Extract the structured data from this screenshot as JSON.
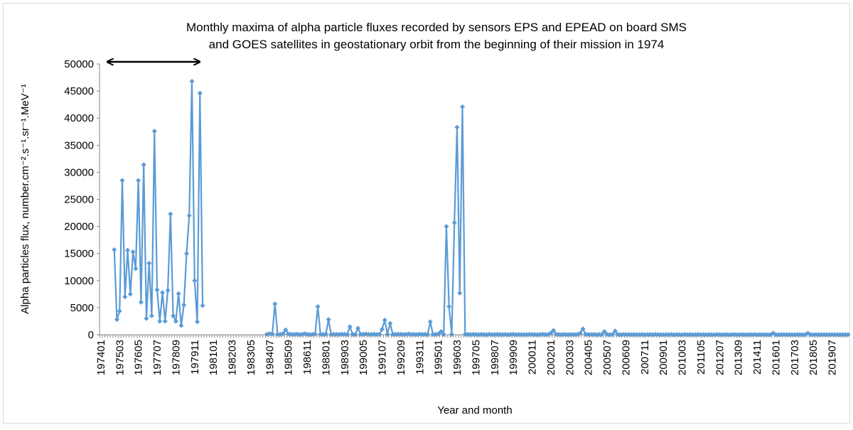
{
  "chart_data": {
    "type": "line",
    "title": [
      "Monthly maxima of alpha particle fluxes recorded by sensors EPS and EPEAD on board SMS",
      "and GOES satellites in geostationary orbit from the beginning of their mission in 1974"
    ],
    "x_label": "Year and month",
    "y_label": "Alpha particles flux, number.cm⁻².s⁻¹.sr⁻¹.MeV⁻¹",
    "ylim": [
      0,
      50000
    ],
    "yticks": [
      0,
      5000,
      10000,
      15000,
      20000,
      25000,
      30000,
      35000,
      40000,
      45000,
      50000
    ],
    "grid": false,
    "color": "#5b9bd5",
    "categories": [
      "197401",
      null,
      null,
      null,
      null,
      null,
      null,
      "197503",
      null,
      null,
      null,
      null,
      null,
      null,
      "197605",
      null,
      null,
      null,
      null,
      null,
      null,
      "197707",
      null,
      null,
      null,
      null,
      null,
      null,
      "197809",
      null,
      null,
      null,
      null,
      null,
      null,
      "197911",
      null,
      null,
      null,
      null,
      null,
      null,
      "198101",
      null,
      null,
      null,
      null,
      null,
      null,
      "198203",
      null,
      null,
      null,
      null,
      null,
      null,
      "198305",
      null,
      null,
      null,
      null,
      null,
      null,
      "198407",
      null,
      null,
      null,
      null,
      null,
      null,
      "198509",
      null,
      null,
      null,
      null,
      null,
      null,
      "198611",
      null,
      null,
      null,
      null,
      null,
      null,
      "198801",
      null,
      null,
      null,
      null,
      null,
      null,
      "198903",
      null,
      null,
      null,
      null,
      null,
      null,
      "199005",
      null,
      null,
      null,
      null,
      null,
      null,
      "199107",
      null,
      null,
      null,
      null,
      null,
      null,
      "199209",
      null,
      null,
      null,
      null,
      null,
      null,
      "199311",
      null,
      null,
      null,
      null,
      null,
      null,
      "199501",
      null,
      null,
      null,
      null,
      null,
      null,
      "199603",
      null,
      null,
      null,
      null,
      null,
      null,
      "199705",
      null,
      null,
      null,
      null,
      null,
      null,
      "199807",
      null,
      null,
      null,
      null,
      null,
      null,
      "199909",
      null,
      null,
      null,
      null,
      null,
      null,
      "200011",
      null,
      null,
      null,
      null,
      null,
      null,
      "200201",
      null,
      null,
      null,
      null,
      null,
      null,
      "200303",
      null,
      null,
      null,
      null,
      null,
      null,
      "200405",
      null,
      null,
      null,
      null,
      null,
      null,
      "200507",
      null,
      null,
      null,
      null,
      null,
      null,
      "200609",
      null,
      null,
      null,
      null,
      null,
      null,
      "200711",
      null,
      null,
      null,
      null,
      null,
      null,
      "200901",
      null,
      null,
      null,
      null,
      null,
      null,
      "201003",
      null,
      null,
      null,
      null,
      null,
      null,
      "201105",
      null,
      null,
      null,
      null,
      null,
      null,
      "201207",
      null,
      null,
      null,
      null,
      null,
      null,
      "201309",
      null,
      null,
      null,
      null,
      null,
      null,
      "201411",
      null,
      null,
      null,
      null,
      null,
      null,
      "201601",
      null,
      null,
      null,
      null,
      null,
      null,
      "201703",
      null,
      null,
      null,
      null,
      null,
      null,
      "201805",
      null,
      null,
      null,
      null,
      null,
      null,
      "201907",
      null,
      null,
      null,
      null,
      null,
      null
    ],
    "values": [
      null,
      null,
      null,
      null,
      null,
      15700,
      2800,
      4400,
      28500,
      7000,
      15600,
      7500,
      15300,
      12200,
      28500,
      6000,
      31400,
      3000,
      13200,
      3500,
      37600,
      8300,
      2500,
      7800,
      2500,
      8200,
      22300,
      3500,
      2500,
      7600,
      1700,
      5500,
      15000,
      22000,
      46800,
      10000,
      2400,
      44600,
      5400,
      null,
      null,
      null,
      null,
      null,
      null,
      null,
      null,
      null,
      null,
      null,
      null,
      null,
      null,
      null,
      null,
      null,
      null,
      null,
      null,
      null,
      null,
      null,
      100,
      200,
      150,
      5700,
      100,
      80,
      200,
      900,
      150,
      100,
      80,
      120,
      60,
      90,
      200,
      100,
      50,
      80,
      150,
      5200,
      100,
      80,
      120,
      2800,
      60,
      100,
      90,
      80,
      120,
      100,
      70,
      1500,
      90,
      60,
      1200,
      80,
      100,
      150,
      90,
      80,
      120,
      60,
      100,
      1000,
      2700,
      100,
      2100,
      90,
      80,
      120,
      100,
      60,
      90,
      150,
      80,
      100,
      70,
      120,
      90,
      100,
      60,
      2400,
      80,
      100,
      150,
      600,
      90,
      20000,
      5200,
      100,
      20700,
      38300,
      7700,
      42100,
      100,
      80,
      60,
      90,
      70,
      50,
      80,
      60,
      40,
      100,
      50,
      70,
      90,
      60,
      50,
      80,
      40,
      60,
      100,
      50,
      70,
      40,
      60,
      50,
      80,
      60,
      50,
      40,
      70,
      100,
      60,
      50,
      300,
      800,
      100,
      60,
      50,
      80,
      40,
      60,
      70,
      50,
      90,
      300,
      1100,
      100,
      60,
      50,
      80,
      40,
      60,
      70,
      600,
      90,
      50,
      60,
      700,
      80,
      40,
      60,
      50,
      70,
      40,
      60,
      50,
      40,
      60,
      30,
      50,
      70,
      40,
      60,
      50,
      40,
      30,
      50,
      40,
      60,
      30,
      50,
      40,
      30,
      60,
      40,
      50,
      30,
      40,
      60,
      50,
      30,
      40,
      50,
      30,
      40,
      60,
      30,
      40,
      50,
      30,
      40,
      60,
      30,
      40,
      50,
      30,
      40,
      50,
      30,
      60,
      40,
      30,
      50,
      40,
      30,
      40,
      300,
      50,
      30,
      40,
      60,
      30,
      50,
      40,
      30,
      60,
      30,
      40,
      50,
      300,
      40,
      30,
      50,
      40,
      30,
      50,
      40,
      30,
      60,
      40,
      30,
      50,
      40,
      30,
      40
    ]
  }
}
